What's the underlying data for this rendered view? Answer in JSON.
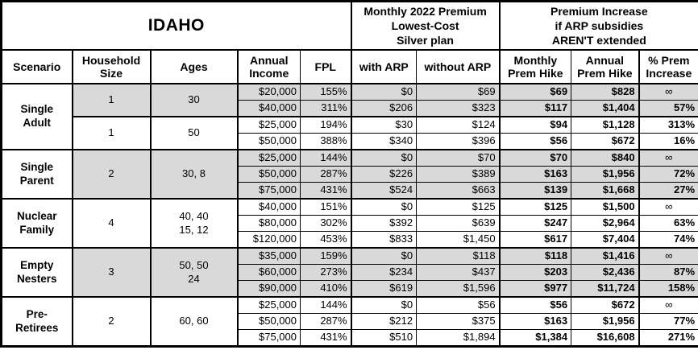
{
  "colors": {
    "shaded_row_bg": "#d9d9d9",
    "border": "#000000",
    "background": "#ffffff",
    "text": "#000000"
  },
  "chart_data": {
    "type": "table",
    "region_title": "IDAHO",
    "premium_group_title": "Monthly 2022 Premium\nLowest-Cost\nSilver plan",
    "increase_group_title": "Premium Increase\nif ARP subsidies\nAREN'T extended",
    "columns": [
      "Scenario",
      "Household\nSize",
      "Ages",
      "Annual\nIncome",
      "FPL",
      "with ARP",
      "without ARP",
      "Monthly\nPrem Hike",
      "Annual\nPrem Hike",
      "% Prem\nIncrease"
    ],
    "data_column_keys": [
      "annual-income",
      "fpl",
      "with-arp",
      "without-arp",
      "monthly-prem-hike",
      "annual-prem-hike",
      "pct-prem-increase"
    ],
    "infinity_symbol": "∞",
    "groups": [
      {
        "scenario": "Single\nAdult",
        "subgroups": [
          {
            "household_size": "1",
            "ages": "30",
            "shaded": true,
            "rows": [
              [
                "$20,000",
                "155%",
                "$0",
                "$69",
                "$69",
                "$828",
                "∞"
              ],
              [
                "$40,000",
                "311%",
                "$206",
                "$323",
                "$117",
                "$1,404",
                "57%"
              ]
            ]
          },
          {
            "household_size": "1",
            "ages": "50",
            "shaded": false,
            "rows": [
              [
                "$25,000",
                "194%",
                "$30",
                "$124",
                "$94",
                "$1,128",
                "313%"
              ],
              [
                "$50,000",
                "388%",
                "$340",
                "$396",
                "$56",
                "$672",
                "16%"
              ]
            ]
          }
        ]
      },
      {
        "scenario": "Single\nParent",
        "subgroups": [
          {
            "household_size": "2",
            "ages": "30, 8",
            "shaded": true,
            "rows": [
              [
                "$25,000",
                "144%",
                "$0",
                "$70",
                "$70",
                "$840",
                "∞"
              ],
              [
                "$50,000",
                "287%",
                "$226",
                "$389",
                "$163",
                "$1,956",
                "72%"
              ],
              [
                "$75,000",
                "431%",
                "$524",
                "$663",
                "$139",
                "$1,668",
                "27%"
              ]
            ]
          }
        ]
      },
      {
        "scenario": "Nuclear\nFamily",
        "subgroups": [
          {
            "household_size": "4",
            "ages": "40, 40\n15, 12",
            "shaded": false,
            "rows": [
              [
                "$40,000",
                "151%",
                "$0",
                "$125",
                "$125",
                "$1,500",
                "∞"
              ],
              [
                "$80,000",
                "302%",
                "$392",
                "$639",
                "$247",
                "$2,964",
                "63%"
              ],
              [
                "$120,000",
                "453%",
                "$833",
                "$1,450",
                "$617",
                "$7,404",
                "74%"
              ]
            ]
          }
        ]
      },
      {
        "scenario": "Empty\nNesters",
        "subgroups": [
          {
            "household_size": "3",
            "ages": "50, 50\n24",
            "shaded": true,
            "rows": [
              [
                "$35,000",
                "159%",
                "$0",
                "$118",
                "$118",
                "$1,416",
                "∞"
              ],
              [
                "$60,000",
                "273%",
                "$234",
                "$437",
                "$203",
                "$2,436",
                "87%"
              ],
              [
                "$90,000",
                "410%",
                "$619",
                "$1,596",
                "$977",
                "$11,724",
                "158%"
              ]
            ]
          }
        ]
      },
      {
        "scenario": "Pre-\nRetirees",
        "subgroups": [
          {
            "household_size": "2",
            "ages": "60, 60",
            "shaded": false,
            "rows": [
              [
                "$25,000",
                "144%",
                "$0",
                "$56",
                "$56",
                "$672",
                "∞"
              ],
              [
                "$50,000",
                "287%",
                "$212",
                "$375",
                "$163",
                "$1,956",
                "77%"
              ],
              [
                "$75,000",
                "431%",
                "$510",
                "$1,894",
                "$1,384",
                "$16,608",
                "271%"
              ]
            ]
          }
        ]
      }
    ]
  }
}
